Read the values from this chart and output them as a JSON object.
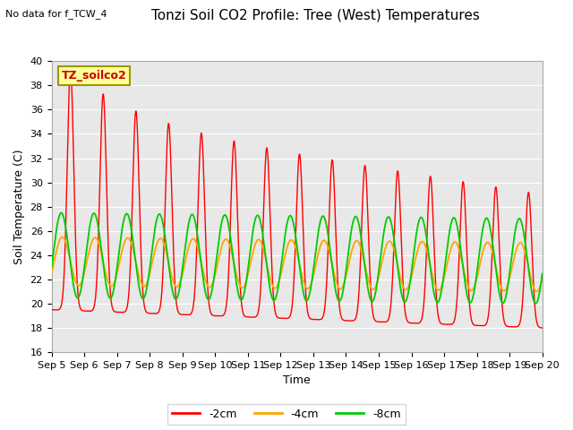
{
  "title": "Tonzi Soil CO2 Profile: Tree (West) Temperatures",
  "no_data_text": "No data for f_TCW_4",
  "xlabel": "Time",
  "ylabel": "Soil Temperature (C)",
  "ylim": [
    16,
    40
  ],
  "yticks": [
    16,
    18,
    20,
    22,
    24,
    26,
    28,
    30,
    32,
    34,
    36,
    38,
    40
  ],
  "xlim_days": [
    5.0,
    20.0
  ],
  "xtick_days": [
    5,
    6,
    7,
    8,
    9,
    10,
    11,
    12,
    13,
    14,
    15,
    16,
    17,
    18,
    19,
    20
  ],
  "xtick_labels": [
    "Sep 5",
    "Sep 6",
    "Sep 7",
    "Sep 8",
    "Sep 9",
    "Sep 10",
    "Sep 11",
    "Sep 12",
    "Sep 13",
    "Sep 14",
    "Sep 15",
    "Sep 16",
    "Sep 17",
    "Sep 18",
    "Sep 19",
    "Sep 20"
  ],
  "bg_color": "#e8e8e8",
  "line_colors": [
    "#ff0000",
    "#ffa500",
    "#00cc00"
  ],
  "line_labels": [
    "-2cm",
    "-4cm",
    "-8cm"
  ],
  "legend_box_color": "#ffff99",
  "legend_box_edge": "#999900",
  "legend_text": "TZ_soilco2",
  "title_fontsize": 11,
  "label_fontsize": 9,
  "tick_fontsize": 8
}
